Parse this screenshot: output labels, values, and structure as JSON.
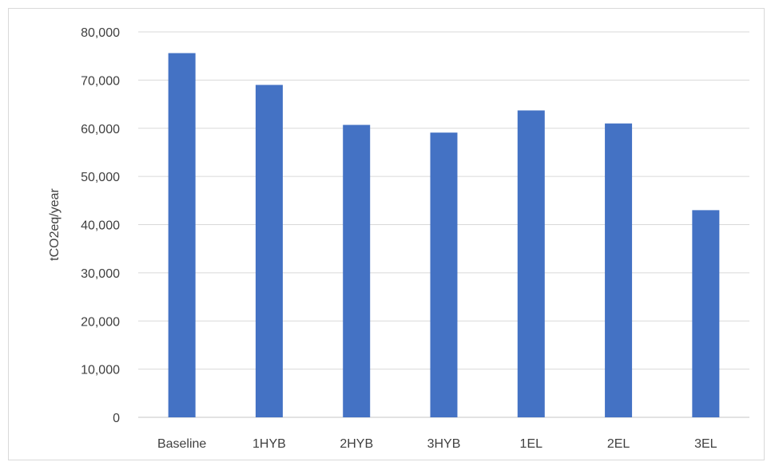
{
  "chart_data": {
    "type": "bar",
    "categories": [
      "Baseline",
      "1HYB",
      "2HYB",
      "3HYB",
      "1EL",
      "2EL",
      "3EL"
    ],
    "values": [
      75600,
      69000,
      60700,
      59100,
      63700,
      61000,
      43000
    ],
    "ylabel": "tCO2eq/year",
    "ylim": [
      0,
      80000
    ],
    "yticks": [
      0,
      10000,
      20000,
      30000,
      40000,
      50000,
      60000,
      70000,
      80000
    ],
    "ytick_labels": [
      "0",
      "10,000",
      "20,000",
      "30,000",
      "40,000",
      "50,000",
      "60,000",
      "70,000",
      "80,000"
    ],
    "grid": true,
    "legend": "none",
    "bar_color": "#4472c4",
    "grid_color": "#d9d9d9"
  }
}
